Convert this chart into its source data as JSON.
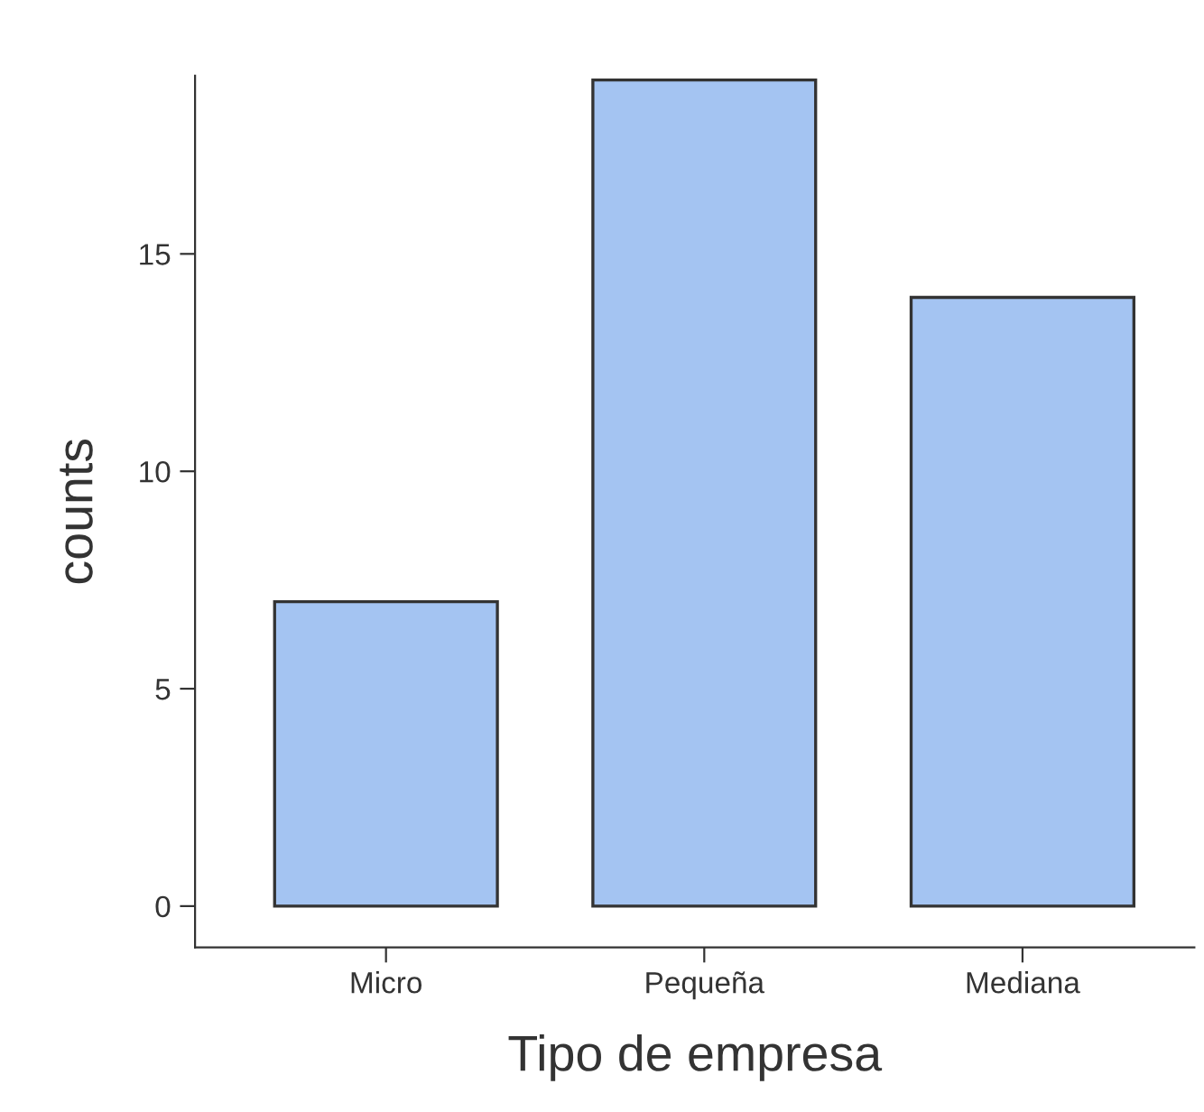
{
  "chart_data": {
    "type": "bar",
    "xlabel": "Tipo de empresa",
    "ylabel": "counts",
    "categories": [
      "Micro",
      "Pequeña",
      "Mediana"
    ],
    "values": [
      7,
      19,
      14
    ],
    "color": "#a4c4f2",
    "ylim": [
      -0.95,
      19.1
    ],
    "yticks": [
      0,
      5,
      10,
      15
    ],
    "grid": false,
    "legend": false
  }
}
